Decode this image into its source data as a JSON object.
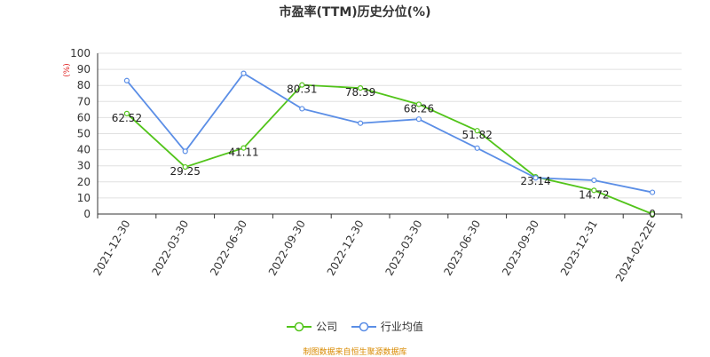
{
  "chart_data": {
    "type": "line",
    "title": "市盈率(TTM)历史分位(%)",
    "y_unit": "(%)",
    "categories": [
      "2021-12-30",
      "2022-03-30",
      "2022-06-30",
      "2022-09-30",
      "2022-12-30",
      "2023-03-30",
      "2023-06-30",
      "2023-09-30",
      "2023-12-31",
      "2024-02-22E"
    ],
    "ylim": [
      0,
      100
    ],
    "yticks": [
      0,
      10,
      20,
      30,
      40,
      50,
      60,
      70,
      80,
      90,
      100
    ],
    "grid": true,
    "legend_position": "bottom",
    "series": [
      {
        "name": "公司",
        "color": "#52c41a",
        "values": [
          62.52,
          29.25,
          41.11,
          80.31,
          78.39,
          68.26,
          51.82,
          23.14,
          14.72,
          0
        ],
        "labels": [
          "62.52",
          "29.25",
          "41.11",
          "80.31",
          "78.39",
          "68.26",
          "51.82",
          "23.14",
          "14.72",
          "0"
        ]
      },
      {
        "name": "行业均值",
        "color": "#5b8ee6",
        "values": [
          83,
          39,
          87.5,
          65.5,
          56.5,
          59,
          41,
          22.5,
          21,
          13.5
        ]
      }
    ]
  },
  "source_text": "制图数据来自恒生聚源数据库",
  "source_color": "#d98a00"
}
